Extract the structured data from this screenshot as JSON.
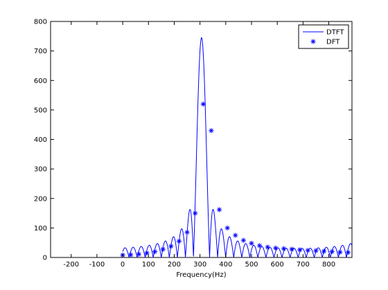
{
  "chart_data": {
    "type": "line",
    "xlabel": "Frequency(Hz)",
    "ylabel": "",
    "title": "",
    "xlim": [
      -280,
      890
    ],
    "ylim": [
      0,
      800
    ],
    "xticks": [
      -200,
      -100,
      0,
      100,
      200,
      300,
      400,
      500,
      600,
      700,
      800
    ],
    "yticks": [
      0,
      100,
      200,
      300,
      400,
      500,
      600,
      700,
      800
    ],
    "grid": false,
    "legend_position": "top-right",
    "colors": {
      "series": "#0000ff",
      "axes": "#000000",
      "background": "#ffffff"
    },
    "series": [
      {
        "name": "DTFT",
        "style": "line",
        "peak": {
          "x": 306,
          "y": 745
        },
        "lobe_spacing_hz": 31.25,
        "x_range": [
          0,
          890
        ]
      },
      {
        "name": "DFT",
        "style": "marker-asterisk",
        "x": [
          0,
          31.25,
          62.5,
          93.75,
          125,
          156.25,
          187.5,
          218.75,
          250,
          281.25,
          312.5,
          343.75,
          375,
          406.25,
          437.5,
          468.75,
          500,
          531.25,
          562.5,
          593.75,
          625,
          656.25,
          687.5,
          718.75,
          750,
          781.25,
          812.5,
          843.75,
          875
        ],
        "y": [
          8,
          9,
          11,
          15,
          20,
          28,
          38,
          55,
          85,
          150,
          520,
          430,
          162,
          100,
          75,
          58,
          48,
          40,
          35,
          32,
          30,
          28,
          26,
          24,
          23,
          21,
          20,
          18,
          17
        ]
      }
    ]
  }
}
